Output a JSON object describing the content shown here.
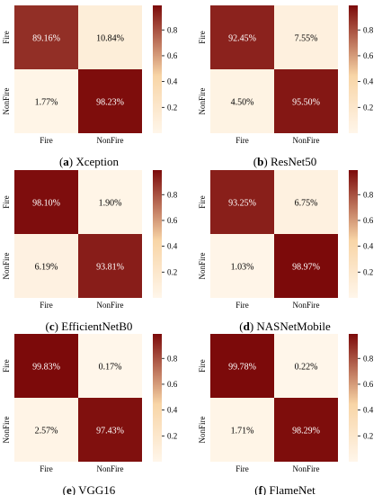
{
  "colorbar": {
    "ticks": [
      0.2,
      0.4,
      0.6,
      0.8
    ],
    "min": 0.0,
    "max": 0.99
  },
  "colors": {
    "low": "#fff6ea",
    "mid": "#f8d5a6",
    "high": "#7c0a0a",
    "border": "#000000"
  },
  "chart_data": [
    {
      "type": "heatmap",
      "letter": "a",
      "title": "Xception",
      "row_labels": [
        "Fire",
        "NonFire"
      ],
      "col_labels": [
        "Fire",
        "NonFire"
      ],
      "values": [
        [
          0.8916,
          0.1084
        ],
        [
          0.0177,
          0.9823
        ]
      ],
      "cell_text": [
        [
          "89.16%",
          "10.84%"
        ],
        [
          "1.77%",
          "98.23%"
        ]
      ]
    },
    {
      "type": "heatmap",
      "letter": "b",
      "title": "ResNet50",
      "row_labels": [
        "Fire",
        "NonFire"
      ],
      "col_labels": [
        "Fire",
        "NonFire"
      ],
      "values": [
        [
          0.9245,
          0.0755
        ],
        [
          0.045,
          0.955
        ]
      ],
      "cell_text": [
        [
          "92.45%",
          "7.55%"
        ],
        [
          "4.50%",
          "95.50%"
        ]
      ]
    },
    {
      "type": "heatmap",
      "letter": "c",
      "title": "EfficientNetB0",
      "row_labels": [
        "Fire",
        "NonFire"
      ],
      "col_labels": [
        "Fire",
        "NonFire"
      ],
      "values": [
        [
          0.981,
          0.019
        ],
        [
          0.0619,
          0.9381
        ]
      ],
      "cell_text": [
        [
          "98.10%",
          "1.90%"
        ],
        [
          "6.19%",
          "93.81%"
        ]
      ]
    },
    {
      "type": "heatmap",
      "letter": "d",
      "title": "NASNetMobile",
      "row_labels": [
        "Fire",
        "NonFire"
      ],
      "col_labels": [
        "Fire",
        "NonFire"
      ],
      "values": [
        [
          0.9325,
          0.0675
        ],
        [
          0.0103,
          0.9897
        ]
      ],
      "cell_text": [
        [
          "93.25%",
          "6.75%"
        ],
        [
          "1.03%",
          "98.97%"
        ]
      ]
    },
    {
      "type": "heatmap",
      "letter": "e",
      "title": "VGG16",
      "row_labels": [
        "Fire",
        "NonFire"
      ],
      "col_labels": [
        "Fire",
        "NonFire"
      ],
      "values": [
        [
          0.9983,
          0.0017
        ],
        [
          0.0257,
          0.9743
        ]
      ],
      "cell_text": [
        [
          "99.83%",
          "0.17%"
        ],
        [
          "2.57%",
          "97.43%"
        ]
      ]
    },
    {
      "type": "heatmap",
      "letter": "f",
      "title": "FlameNet",
      "row_labels": [
        "Fire",
        "NonFire"
      ],
      "col_labels": [
        "Fire",
        "NonFire"
      ],
      "values": [
        [
          0.9978,
          0.0022
        ],
        [
          0.0171,
          0.9829
        ]
      ],
      "cell_text": [
        [
          "99.78%",
          "0.22%"
        ],
        [
          "1.71%",
          "98.29%"
        ]
      ]
    }
  ]
}
